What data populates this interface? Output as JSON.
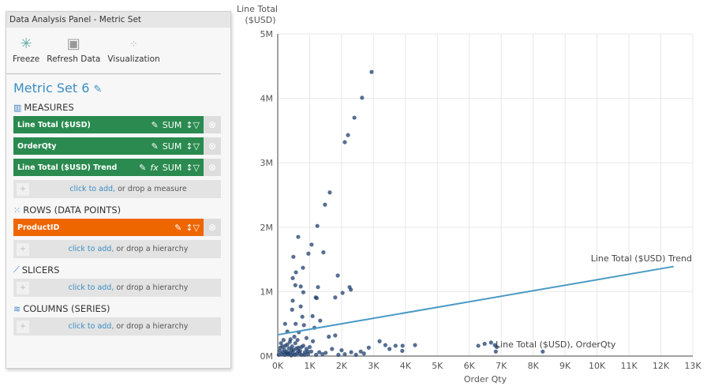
{
  "panel": {
    "title": "Data Analysis Panel - Metric Set",
    "tools": [
      {
        "label": "Freeze",
        "icon": "freeze-icon"
      },
      {
        "label": "Refresh Data",
        "icon": "refresh-icon"
      },
      {
        "label": "Visualization",
        "icon": "scatter-icon"
      }
    ],
    "metric_set": "Metric Set 6",
    "measures_label": "MEASURES",
    "measures": [
      {
        "label": "Line Total ($USD)",
        "agg": "SUM",
        "fx": false
      },
      {
        "label": "OrderQty",
        "agg": "SUM",
        "fx": false
      },
      {
        "label": "Line Total ($USD) Trend",
        "agg": "SUM",
        "fx": true
      }
    ],
    "add_link": "click to add,",
    "add_measure": " or drop a measure",
    "add_hierarchy": " or drop a hierarchy",
    "rows_label": "ROWS (DATA POINTS)",
    "rows": [
      {
        "label": "ProductID"
      }
    ],
    "slicers_label": "SLICERS",
    "columns_label": "COLUMNS (SERIES)",
    "fx_label": "fx",
    "colors": {
      "measure": "#2a8a4f",
      "row": "#ee6600",
      "accent": "#3a8ec4"
    }
  },
  "chart_data": {
    "type": "scatter",
    "xlabel": "Order Qty",
    "ylabel": "Line Total ($USD)",
    "xlim": [
      0,
      13000
    ],
    "ylim": [
      0,
      5000000
    ],
    "xticks": [
      "0K",
      "1K",
      "2K",
      "3K",
      "4K",
      "5K",
      "6K",
      "7K",
      "8K",
      "9K",
      "10K",
      "11K",
      "12K",
      "13K"
    ],
    "yticks": [
      "0M",
      "1M",
      "2M",
      "3M",
      "4M",
      "5M"
    ],
    "grid": true,
    "point_color": "#1f3f6e",
    "trend_color": "#4a9ac4",
    "series": [
      {
        "name": "Line Total ($USD), OrderQty",
        "points": [
          [
            2940,
            4410000
          ],
          [
            2640,
            4010000
          ],
          [
            2400,
            3700000
          ],
          [
            2200,
            3430000
          ],
          [
            2100,
            3320000
          ],
          [
            1630,
            2540000
          ],
          [
            1480,
            2350000
          ],
          [
            1240,
            2020000
          ],
          [
            640,
            1850000
          ],
          [
            1060,
            1730000
          ],
          [
            960,
            1590000
          ],
          [
            490,
            1540000
          ],
          [
            1430,
            1610000
          ],
          [
            790,
            1370000
          ],
          [
            570,
            1300000
          ],
          [
            1880,
            1250000
          ],
          [
            470,
            1210000
          ],
          [
            550,
            1100000
          ],
          [
            720,
            1080000
          ],
          [
            800,
            990000
          ],
          [
            470,
            860000
          ],
          [
            2250,
            1070000
          ],
          [
            2290,
            1030000
          ],
          [
            2030,
            980000
          ],
          [
            1260,
            1070000
          ],
          [
            1800,
            910000
          ],
          [
            1190,
            910000
          ],
          [
            1220,
            900000
          ],
          [
            720,
            770000
          ],
          [
            450,
            720000
          ],
          [
            770,
            610000
          ],
          [
            1090,
            620000
          ],
          [
            1330,
            550000
          ],
          [
            560,
            500000
          ],
          [
            820,
            480000
          ],
          [
            230,
            500000
          ],
          [
            1150,
            440000
          ],
          [
            300,
            380000
          ],
          [
            660,
            370000
          ],
          [
            1600,
            300000
          ],
          [
            1800,
            320000
          ],
          [
            900,
            280000
          ],
          [
            400,
            260000
          ],
          [
            1100,
            230000
          ],
          [
            3190,
            230000
          ],
          [
            3370,
            170000
          ],
          [
            3690,
            160000
          ],
          [
            3910,
            160000
          ],
          [
            4300,
            170000
          ],
          [
            2850,
            130000
          ],
          [
            3500,
            110000
          ],
          [
            3900,
            80000
          ],
          [
            2600,
            70000
          ],
          [
            2300,
            60000
          ],
          [
            2000,
            90000
          ],
          [
            1700,
            110000
          ],
          [
            1500,
            50000
          ],
          [
            6280,
            160000
          ],
          [
            6480,
            190000
          ],
          [
            6680,
            210000
          ],
          [
            6800,
            170000
          ],
          [
            6860,
            140000
          ],
          [
            6830,
            70000
          ],
          [
            8300,
            70000
          ],
          [
            100,
            200000
          ],
          [
            150,
            150000
          ],
          [
            200,
            100000
          ],
          [
            250,
            50000
          ],
          [
            300,
            180000
          ],
          [
            350,
            120000
          ],
          [
            400,
            60000
          ],
          [
            450,
            150000
          ],
          [
            500,
            90000
          ],
          [
            550,
            200000
          ],
          [
            600,
            40000
          ],
          [
            650,
            130000
          ],
          [
            700,
            80000
          ],
          [
            750,
            20000
          ],
          [
            800,
            160000
          ],
          [
            850,
            60000
          ],
          [
            900,
            110000
          ],
          [
            950,
            30000
          ],
          [
            1000,
            140000
          ],
          [
            1050,
            70000
          ],
          [
            1200,
            20000
          ],
          [
            1300,
            60000
          ],
          [
            1400,
            30000
          ],
          [
            60,
            80000
          ],
          [
            120,
            30000
          ],
          [
            180,
            250000
          ],
          [
            220,
            20000
          ],
          [
            280,
            70000
          ],
          [
            320,
            30000
          ],
          [
            380,
            220000
          ],
          [
            420,
            10000
          ],
          [
            480,
            40000
          ],
          [
            520,
            300000
          ],
          [
            580,
            120000
          ],
          [
            620,
            250000
          ],
          [
            680,
            40000
          ],
          [
            30,
            20000
          ],
          [
            80,
            130000
          ],
          [
            160,
            60000
          ],
          [
            240,
            160000
          ],
          [
            340,
            40000
          ],
          [
            440,
            100000
          ],
          [
            540,
            20000
          ],
          [
            640,
            80000
          ],
          [
            740,
            140000
          ],
          [
            840,
            20000
          ],
          [
            940,
            70000
          ],
          [
            2100,
            30000
          ],
          [
            2450,
            20000
          ],
          [
            2700,
            40000
          ],
          [
            1900,
            20000
          ]
        ]
      },
      {
        "name": "Line Total ($USD) Trend",
        "line": [
          [
            0,
            330000
          ],
          [
            12400,
            1390000
          ]
        ]
      }
    ]
  }
}
